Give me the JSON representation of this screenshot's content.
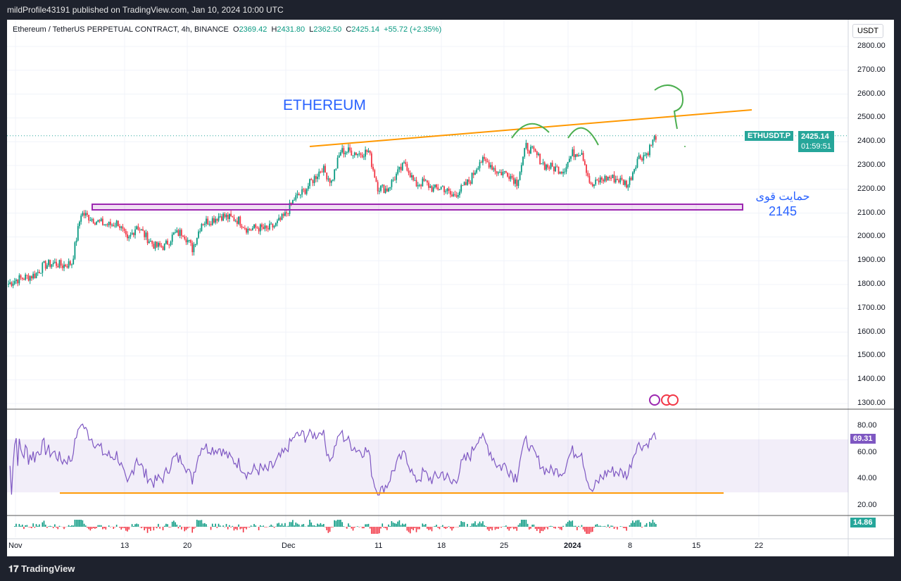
{
  "header": {
    "published": "mildProfile43191 published on TradingView.com, Jan 10, 2024 10:00 UTC"
  },
  "legend": {
    "symbol": "Ethereum / TetherUS PERPETUAL CONTRACT, 4h, BINANCE",
    "o_label": "O",
    "o": "2369.42",
    "h_label": "H",
    "h": "2431.80",
    "l_label": "L",
    "l": "2362.50",
    "c_label": "C",
    "c": "2425.14",
    "change": "+55.72 (+2.35%)"
  },
  "price_axis": {
    "currency": "USDT",
    "ticks": [
      "2800.00",
      "2700.00",
      "2600.00",
      "2500.00",
      "2400.00",
      "2300.00",
      "2200.00",
      "2100.00",
      "2000.00",
      "1900.00",
      "1800.00",
      "1700.00",
      "1600.00",
      "1500.00",
      "1400.00",
      "1300.00"
    ]
  },
  "price_tag": {
    "symbol": "ETHUSDT.P",
    "price": "2425.14",
    "countdown": "01:59:51"
  },
  "rsi": {
    "ticks": [
      "80.00",
      "60.00",
      "40.00",
      "20.00"
    ],
    "value": "69.31",
    "band": [
      30,
      70
    ]
  },
  "osc": {
    "value": "14.86"
  },
  "time_axis": [
    "Nov",
    "13",
    "20",
    "Dec",
    "11",
    "18",
    "25",
    "2024",
    "8",
    "15",
    "22"
  ],
  "annotations": {
    "title": "ETHEREUM",
    "support_label": "حمایت قوی",
    "support_value": "2145"
  },
  "colors": {
    "up": "#089981",
    "down": "#f23645",
    "rsi": "#7e57c2",
    "trend": "#ff9800",
    "support_box": "#9c27b0",
    "marks": "#4caf50",
    "text_blue": "#2962ff"
  },
  "footer": {
    "brand": "TradingView"
  },
  "chart_data": {
    "type": "candlestick",
    "interval": "4h",
    "x_start": "2023-11-01",
    "x_end": "2024-01-10",
    "ylim": [
      1300,
      2800
    ],
    "daily_close": [
      1800,
      1820,
      1830,
      1840,
      1880,
      1890,
      1880,
      1890,
      2100,
      2080,
      2060,
      2050,
      2060,
      1980,
      2050,
      2000,
      1960,
      1960,
      2010,
      2020,
      1950,
      2060,
      2070,
      2090,
      2080,
      2070,
      2030,
      2040,
      2030,
      2050,
      2090,
      2160,
      2190,
      2240,
      2290,
      2230,
      2360,
      2360,
      2350,
      2360,
      2210,
      2200,
      2260,
      2310,
      2220,
      2230,
      2200,
      2210,
      2170,
      2200,
      2240,
      2320,
      2310,
      2270,
      2270,
      2230,
      2380,
      2350,
      2300,
      2290,
      2280,
      2350,
      2360,
      2210,
      2240,
      2250,
      2240,
      2220,
      2330,
      2350,
      2425
    ]
  }
}
